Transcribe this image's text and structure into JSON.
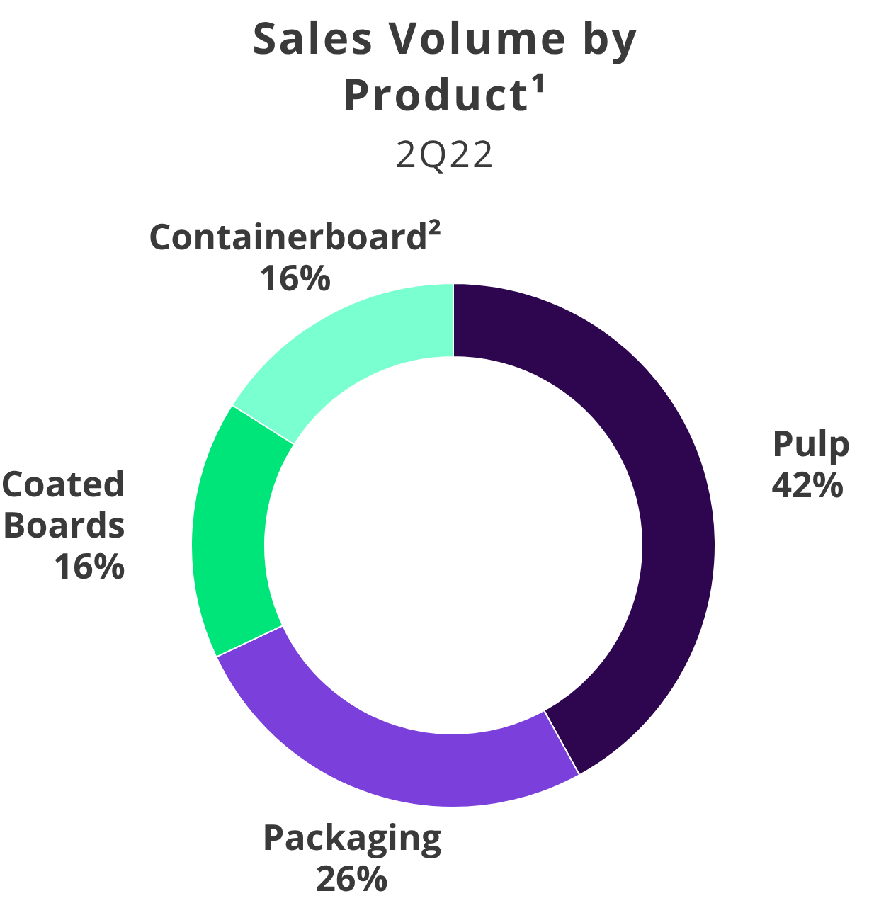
{
  "chart_data": {
    "type": "donut",
    "title": "Sales Volume by Product¹",
    "subtitle": "2Q22",
    "categories": [
      "Pulp",
      "Packaging",
      "Coated Boards",
      "Containerboard²"
    ],
    "values": [
      42,
      26,
      16,
      16
    ],
    "colors": [
      "#2d064f",
      "#7b3fdb",
      "#00e57a",
      "#7affd0"
    ],
    "value_labels": [
      "42%",
      "26%",
      "16%",
      "16%"
    ]
  }
}
